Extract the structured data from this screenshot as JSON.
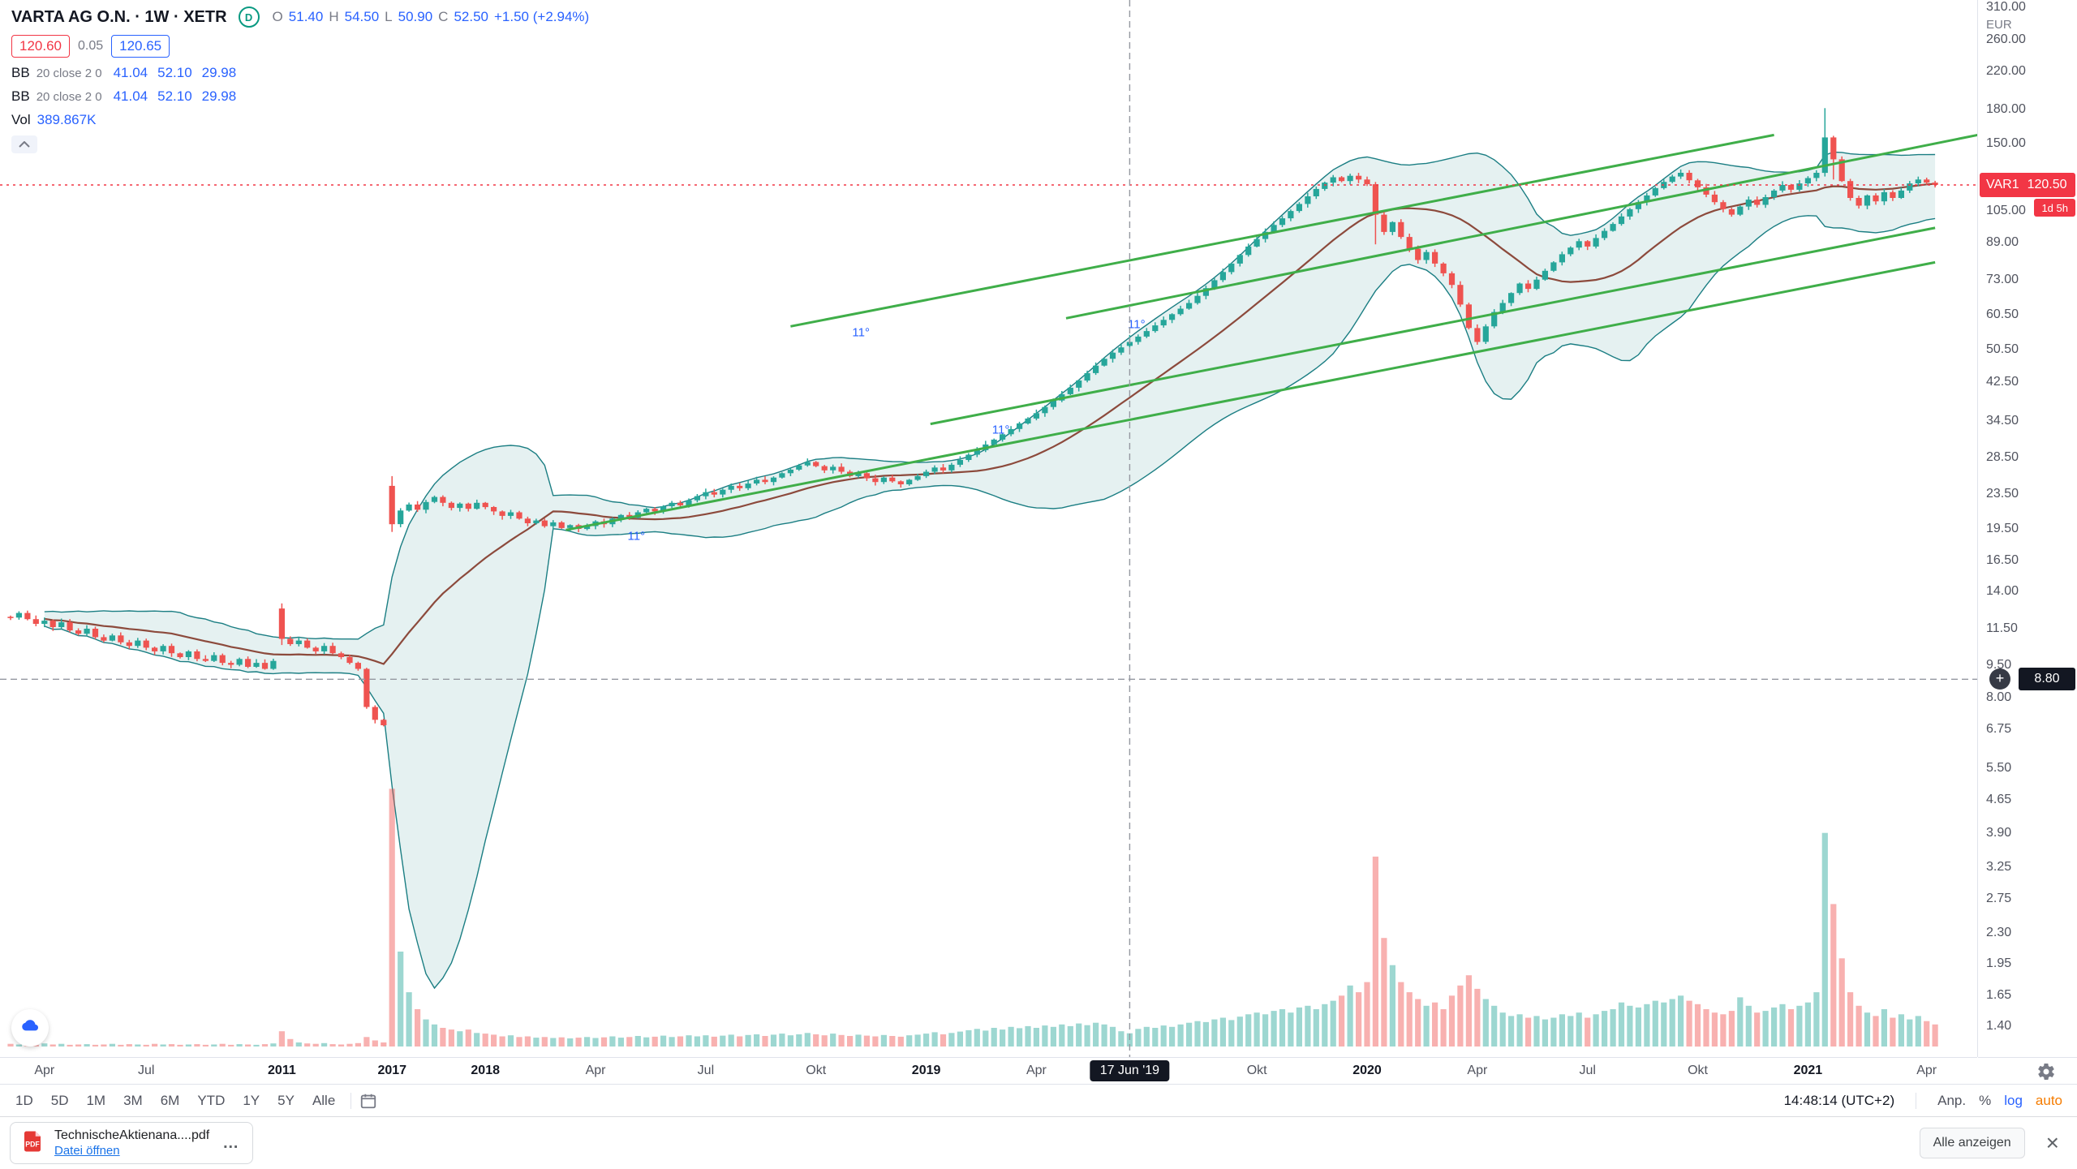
{
  "header": {
    "symbol_title": "VARTA AG O.N. · 1W · XETR",
    "market_status": {
      "letter": "D"
    },
    "ohlc": {
      "labels": [
        "O",
        "H",
        "L",
        "C"
      ],
      "values": [
        "51.40",
        "54.50",
        "50.90",
        "52.50"
      ],
      "change": "+1.50 (+2.94%)"
    },
    "bid": "120.60",
    "spread": "0.05",
    "ask": "120.65",
    "indicators": [
      {
        "name": "BB",
        "params": "20 close 2 0",
        "values": [
          "41.04",
          "52.10",
          "29.98"
        ]
      },
      {
        "name": "BB",
        "params": "20 close 2 0",
        "values": [
          "41.04",
          "52.10",
          "29.98"
        ]
      }
    ],
    "volume_row": {
      "label": "Vol",
      "value": "389.867K"
    }
  },
  "price_axis": {
    "top_label": "310.00",
    "currency": "EUR",
    "ticks": [
      "260.00",
      "220.00",
      "180.00",
      "150.00",
      "105.00",
      "89.00",
      "73.00",
      "60.50",
      "50.50",
      "42.50",
      "34.50",
      "28.50",
      "23.50",
      "19.50",
      "16.50",
      "14.00",
      "11.50",
      "9.50",
      "8.00",
      "6.75",
      "5.50",
      "4.65",
      "3.90",
      "3.25",
      "2.75",
      "2.30",
      "1.95",
      "1.65",
      "1.40"
    ],
    "price_tag": {
      "name": "VAR1",
      "value": "120.50",
      "countdown": "1d 5h"
    },
    "crosshair_price": "8.80"
  },
  "time_axis": {
    "labels": [
      {
        "text": "Apr",
        "bar": 4
      },
      {
        "text": "Jul",
        "bar": 16
      },
      {
        "text": "2011",
        "bar": 32
      },
      {
        "text": "2017",
        "bar": 45
      },
      {
        "text": "2018",
        "bar": 56
      },
      {
        "text": "Apr",
        "bar": 69
      },
      {
        "text": "Jul",
        "bar": 82
      },
      {
        "text": "Okt",
        "bar": 95
      },
      {
        "text": "2019",
        "bar": 108
      },
      {
        "text": "Apr",
        "bar": 121
      },
      {
        "text": "Okt",
        "bar": 147
      },
      {
        "text": "2020",
        "bar": 160
      },
      {
        "text": "Apr",
        "bar": 173
      },
      {
        "text": "Jul",
        "bar": 186
      },
      {
        "text": "Okt",
        "bar": 199
      },
      {
        "text": "2021",
        "bar": 212
      },
      {
        "text": "Apr",
        "bar": 226
      }
    ],
    "crosshair_label": "17 Jun '19"
  },
  "toolbar": {
    "ranges": [
      "1D",
      "5D",
      "1M",
      "3M",
      "6M",
      "YTD",
      "1Y",
      "5Y",
      "Alle"
    ],
    "clock": "14:48:14 (UTC+2)",
    "adjust_label": "Anp.",
    "percent_label": "%",
    "log_label": "log",
    "auto_label": "auto"
  },
  "download_bar": {
    "filename": "TechnischeAktienana....pdf",
    "action": "Datei öffnen",
    "show_all": "Alle anzeigen"
  },
  "chart_data": {
    "type": "candlestick",
    "title": "VARTA AG O.N.",
    "interval": "1W",
    "exchange": "XETR",
    "scale": "log",
    "y_range": [
      1.4,
      310.0
    ],
    "grid": false,
    "indicators": [
      "BB(20, close, 2)",
      "BB(20, close, 2)",
      "Volume"
    ],
    "last_price": 120.5,
    "crosshair": {
      "bar_index": 132,
      "price": 8.8,
      "time_label": "17 Jun '19",
      "bar_ohlc": {
        "o": 51.4,
        "h": 54.5,
        "l": 50.9,
        "c": 52.5
      }
    },
    "closes": [
      12.2,
      12.5,
      12.1,
      11.8,
      12.0,
      11.6,
      11.9,
      11.4,
      11.2,
      11.5,
      11.0,
      10.8,
      11.1,
      10.7,
      10.5,
      10.8,
      10.4,
      10.2,
      10.5,
      10.1,
      9.9,
      10.2,
      9.8,
      9.7,
      10.0,
      9.6,
      9.5,
      9.8,
      9.4,
      9.6,
      9.3,
      9.7,
      10.9,
      10.6,
      10.8,
      10.4,
      10.2,
      10.5,
      10.1,
      9.9,
      9.6,
      9.3,
      7.6,
      7.1,
      6.9,
      20.0,
      21.5,
      22.2,
      21.6,
      22.5,
      23.1,
      22.4,
      21.8,
      22.3,
      21.7,
      22.4,
      21.9,
      21.4,
      20.9,
      21.3,
      20.6,
      20.1,
      20.4,
      19.8,
      20.2,
      19.6,
      19.9,
      19.5,
      19.8,
      20.3,
      20.0,
      20.6,
      21.0,
      20.7,
      21.3,
      21.7,
      21.4,
      22.0,
      22.4,
      22.1,
      22.7,
      23.2,
      23.7,
      23.4,
      24.0,
      24.5,
      24.2,
      24.8,
      25.3,
      25.0,
      25.6,
      26.2,
      26.7,
      27.3,
      27.8,
      27.2,
      26.6,
      27.1,
      26.4,
      25.8,
      26.2,
      25.5,
      25.0,
      25.6,
      25.1,
      24.7,
      25.3,
      25.8,
      26.4,
      27.0,
      26.6,
      27.4,
      28.1,
      28.9,
      29.6,
      30.5,
      31.3,
      32.2,
      33.1,
      34.1,
      35.0,
      36.0,
      37.2,
      38.5,
      39.8,
      41.2,
      42.8,
      44.5,
      46.3,
      48.0,
      49.6,
      51.0,
      52.5,
      54.0,
      55.6,
      57.3,
      59.0,
      60.8,
      62.6,
      64.5,
      67.0,
      69.8,
      72.8,
      76.0,
      79.5,
      83.2,
      87.0,
      90.5,
      94.0,
      97.5,
      101.0,
      105.0,
      109.0,
      113.5,
      118.0,
      122.0,
      125.5,
      123.0,
      126.5,
      124.0,
      121.0,
      103.0,
      94.0,
      99.0,
      91.5,
      86.0,
      81.0,
      84.5,
      79.5,
      75.5,
      71.0,
      64.0,
      56.5,
      52.5,
      57.0,
      61.5,
      64.5,
      68.0,
      71.5,
      69.5,
      73.0,
      76.5,
      80.0,
      83.5,
      86.5,
      89.5,
      87.0,
      91.0,
      94.5,
      98.0,
      102.0,
      106.0,
      110.0,
      114.0,
      118.5,
      122.5,
      126.0,
      128.5,
      123.5,
      119.0,
      114.5,
      110.0,
      106.0,
      103.0,
      107.5,
      111.5,
      108.5,
      113.0,
      117.0,
      120.5,
      117.5,
      121.5,
      125.0,
      128.5,
      155.0,
      138.0,
      123.0,
      112.5,
      108.0,
      114.0,
      110.5,
      116.0,
      112.5,
      117.0,
      121.5,
      124.0,
      122.0,
      120.5
    ],
    "volumes_m": [
      0.08,
      0.06,
      0.07,
      0.05,
      0.09,
      0.06,
      0.08,
      0.05,
      0.06,
      0.07,
      0.05,
      0.06,
      0.08,
      0.05,
      0.07,
      0.06,
      0.05,
      0.08,
      0.06,
      0.07,
      0.05,
      0.06,
      0.07,
      0.05,
      0.06,
      0.08,
      0.05,
      0.07,
      0.06,
      0.05,
      0.07,
      0.09,
      0.45,
      0.22,
      0.12,
      0.09,
      0.08,
      0.1,
      0.07,
      0.06,
      0.08,
      0.1,
      0.28,
      0.18,
      0.12,
      7.6,
      2.8,
      1.6,
      1.1,
      0.8,
      0.65,
      0.55,
      0.5,
      0.45,
      0.5,
      0.4,
      0.38,
      0.35,
      0.3,
      0.33,
      0.28,
      0.3,
      0.26,
      0.28,
      0.25,
      0.27,
      0.24,
      0.26,
      0.28,
      0.25,
      0.27,
      0.3,
      0.26,
      0.28,
      0.31,
      0.27,
      0.29,
      0.32,
      0.28,
      0.3,
      0.33,
      0.3,
      0.33,
      0.29,
      0.32,
      0.35,
      0.3,
      0.34,
      0.36,
      0.31,
      0.35,
      0.38,
      0.33,
      0.36,
      0.4,
      0.36,
      0.33,
      0.38,
      0.34,
      0.31,
      0.35,
      0.32,
      0.3,
      0.34,
      0.31,
      0.29,
      0.33,
      0.35,
      0.38,
      0.42,
      0.36,
      0.4,
      0.44,
      0.48,
      0.52,
      0.47,
      0.55,
      0.5,
      0.58,
      0.54,
      0.6,
      0.55,
      0.62,
      0.58,
      0.65,
      0.6,
      0.68,
      0.63,
      0.7,
      0.65,
      0.58,
      0.45,
      0.39,
      0.52,
      0.58,
      0.55,
      0.62,
      0.58,
      0.65,
      0.7,
      0.75,
      0.72,
      0.8,
      0.85,
      0.78,
      0.88,
      0.95,
      1.0,
      0.95,
      1.05,
      1.1,
      1.0,
      1.15,
      1.2,
      1.1,
      1.25,
      1.35,
      1.5,
      1.8,
      1.6,
      1.9,
      5.6,
      3.2,
      2.4,
      1.9,
      1.6,
      1.4,
      1.2,
      1.3,
      1.1,
      1.5,
      1.8,
      2.1,
      1.7,
      1.4,
      1.2,
      1.0,
      0.9,
      0.95,
      0.85,
      0.9,
      0.8,
      0.85,
      0.95,
      0.9,
      1.0,
      0.85,
      0.95,
      1.05,
      1.1,
      1.3,
      1.2,
      1.15,
      1.25,
      1.35,
      1.3,
      1.4,
      1.5,
      1.35,
      1.25,
      1.1,
      1.0,
      0.95,
      1.05,
      1.45,
      1.2,
      1.0,
      1.05,
      1.15,
      1.25,
      1.1,
      1.2,
      1.3,
      1.6,
      6.3,
      4.2,
      2.6,
      1.6,
      1.2,
      1.0,
      0.9,
      1.1,
      0.85,
      0.95,
      0.8,
      0.9,
      0.75,
      0.65
    ],
    "special_bars": {
      "32": {
        "o": 12.8,
        "h": 13.15,
        "l": 10.55
      },
      "45": {
        "o": 24.5,
        "h": 25.8,
        "l": 19.2
      },
      "132": {
        "o": 51.4,
        "h": 54.5,
        "l": 50.9
      },
      "161": {
        "l": 88.0
      },
      "214": {
        "h": 181.0,
        "l": 126.0
      },
      "215": {
        "l": 124.0
      }
    },
    "trend_lines": [
      {
        "b1": 92.0,
        "p1": 57.0,
        "b2": 208.0,
        "p2": 157.0,
        "angle_label": "11°"
      },
      {
        "b1": 124.5,
        "p1": 59.5,
        "b2": 232.0,
        "p2": 157.0,
        "angle_label": "11°"
      },
      {
        "b1": 108.5,
        "p1": 34.0,
        "b2": 227.0,
        "p2": 96.0,
        "angle_label": "11°"
      },
      {
        "b1": 65.5,
        "p1": 19.4,
        "b2": 227.0,
        "p2": 80.0,
        "angle_label": "11°"
      }
    ],
    "colors": {
      "up": "#26a69a",
      "down": "#ef5350",
      "vol_up": "rgba(38,166,154,0.45)",
      "vol_down": "rgba(239,83,80,0.45)",
      "band_line": "#1b7e83",
      "band_fill": "rgba(42,143,143,0.12)",
      "bb_basis": "#8c4a3c",
      "trend": "#3fae49",
      "crosshair": "#9598a1",
      "price_line": "#f23645",
      "accent_blue": "#2962ff",
      "badge_red": "#f23645",
      "badge_dark": "#131722"
    }
  }
}
